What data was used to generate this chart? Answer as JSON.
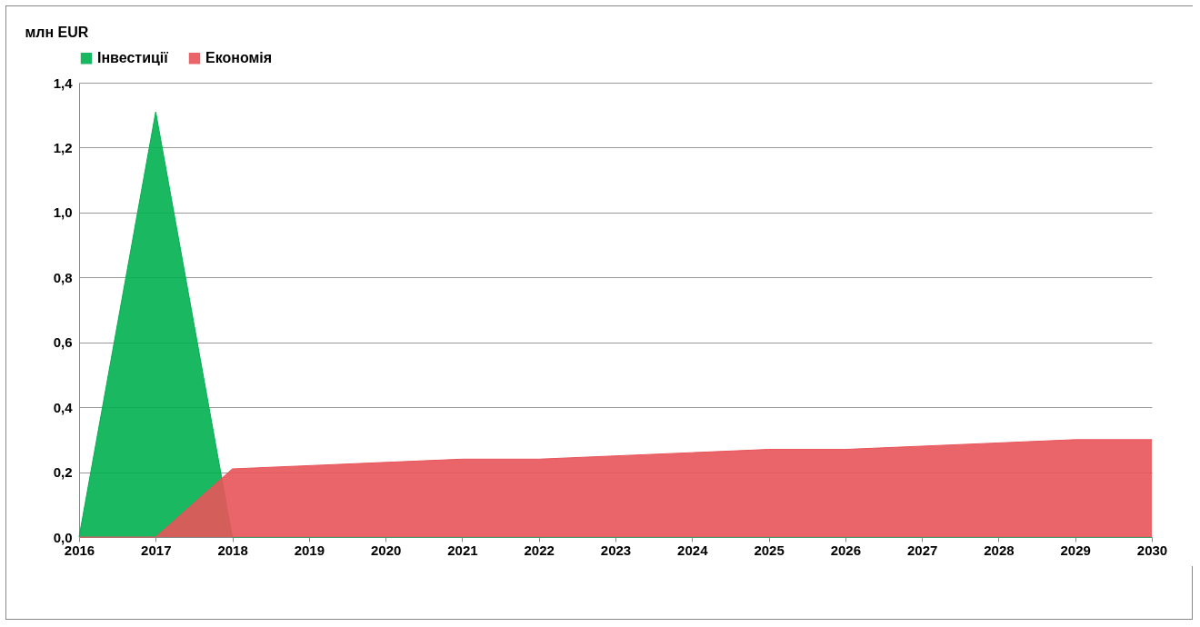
{
  "chart_data": {
    "type": "area",
    "ylabel": "млн EUR",
    "categories": [
      "2016",
      "2017",
      "2018",
      "2019",
      "2020",
      "2021",
      "2022",
      "2023",
      "2024",
      "2025",
      "2026",
      "2027",
      "2028",
      "2029",
      "2030"
    ],
    "series": [
      {
        "name": "Інвестиції",
        "color": "#00b050",
        "values": [
          0,
          1.31,
          0,
          0,
          0,
          0,
          0,
          0,
          0,
          0,
          0,
          0,
          0,
          0,
          0
        ]
      },
      {
        "name": "Економія",
        "color": "#e8545a",
        "values": [
          0,
          0,
          0.21,
          0.22,
          0.23,
          0.24,
          0.24,
          0.25,
          0.26,
          0.27,
          0.27,
          0.28,
          0.29,
          0.3,
          0.3
        ]
      }
    ],
    "ylim": [
      0,
      1.4
    ],
    "yticks": [
      {
        "value": 0,
        "label": "0,0"
      },
      {
        "value": 0.2,
        "label": "0,2"
      },
      {
        "value": 0.4,
        "label": "0,4"
      },
      {
        "value": 0.6,
        "label": "0,6"
      },
      {
        "value": 0.8,
        "label": "0,8"
      },
      {
        "value": 1,
        "label": "1,0"
      },
      {
        "value": 1.2,
        "label": "1,2"
      },
      {
        "value": 1.4,
        "label": "1,4"
      }
    ],
    "grid": "y",
    "legend": "top"
  }
}
